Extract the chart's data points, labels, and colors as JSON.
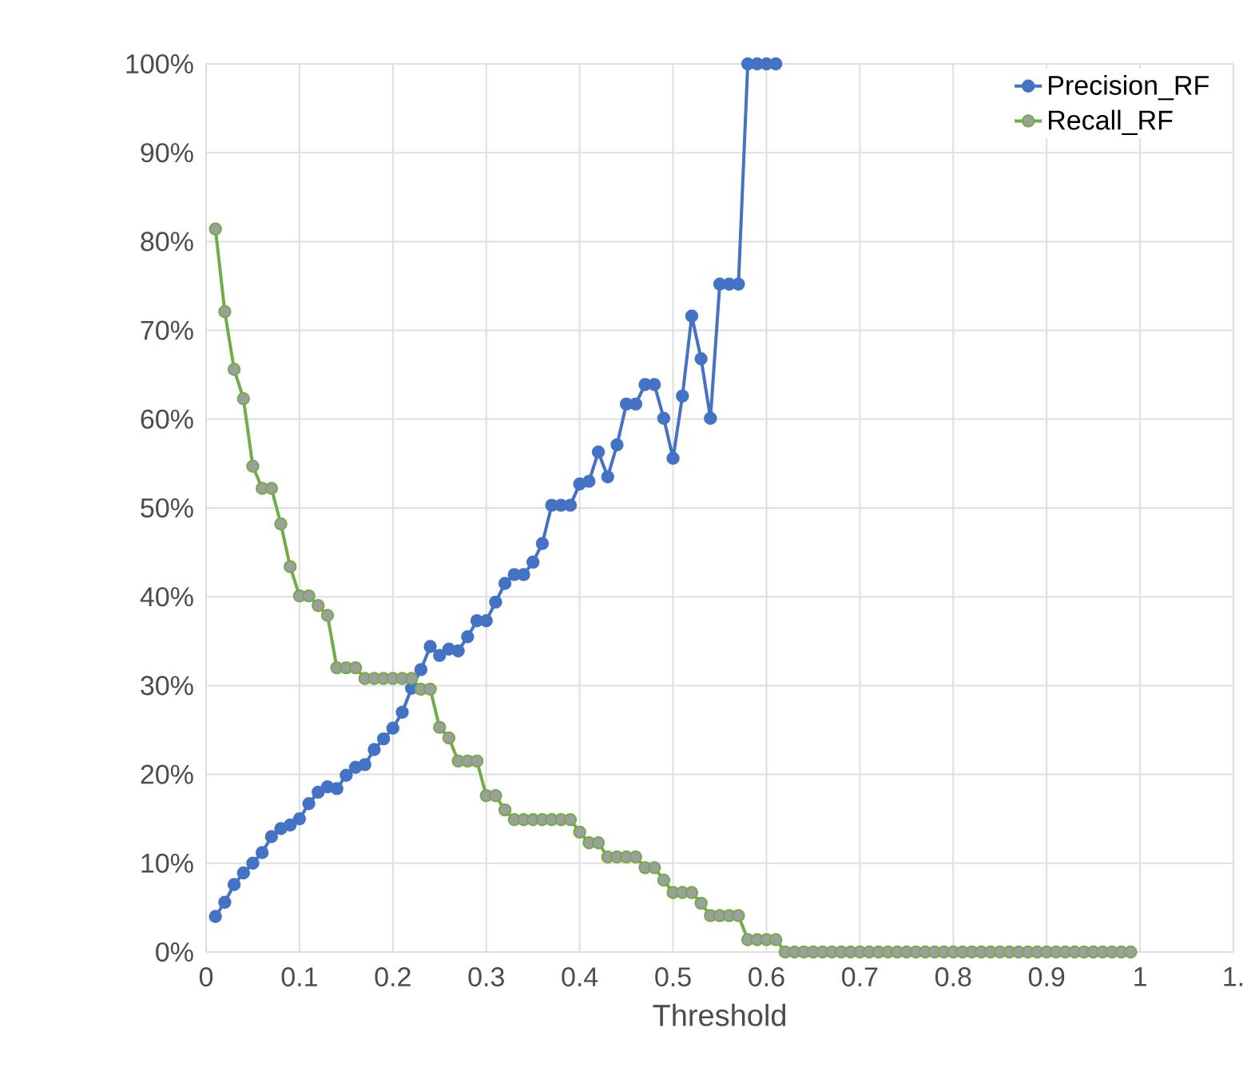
{
  "chart_data": {
    "type": "line",
    "xlabel": "Threshold",
    "xlim": [
      0,
      1.1
    ],
    "ylim": [
      0,
      100
    ],
    "xticks": [
      0,
      0.1,
      0.2,
      0.3,
      0.4,
      0.5,
      0.6,
      0.7,
      0.8,
      0.9,
      1,
      {
        "value": 1.1,
        "label": "1."
      }
    ],
    "yticks": [
      {
        "value": 0,
        "label": "0%"
      },
      {
        "value": 10,
        "label": "10%"
      },
      {
        "value": 20,
        "label": "20%"
      },
      {
        "value": 30,
        "label": "30%"
      },
      {
        "value": 40,
        "label": "40%"
      },
      {
        "value": 50,
        "label": "50%"
      },
      {
        "value": 60,
        "label": "60%"
      },
      {
        "value": 70,
        "label": "70%"
      },
      {
        "value": 80,
        "label": "80%"
      },
      {
        "value": 90,
        "label": "90%"
      },
      {
        "value": 100,
        "label": "100%"
      }
    ],
    "grid": true,
    "legend": "top right",
    "marker": "circle",
    "line_style": "solid",
    "series": [
      {
        "name": "Precision_RF",
        "color": "#4472c4",
        "x": [
          0.01,
          0.02,
          0.03,
          0.04,
          0.05,
          0.06,
          0.07,
          0.08,
          0.09,
          0.1,
          0.11,
          0.12,
          0.13,
          0.14,
          0.15,
          0.16,
          0.17,
          0.18,
          0.19,
          0.2,
          0.21,
          0.22,
          0.23,
          0.24,
          0.25,
          0.26,
          0.27,
          0.28,
          0.29,
          0.3,
          0.31,
          0.32,
          0.33,
          0.34,
          0.35,
          0.36,
          0.37,
          0.38,
          0.39,
          0.4,
          0.41,
          0.42,
          0.43,
          0.44,
          0.45,
          0.46,
          0.47,
          0.48,
          0.49,
          0.5,
          0.51,
          0.52,
          0.53,
          0.54,
          0.55,
          0.56,
          0.57,
          0.58,
          0.59,
          0.6,
          0.61
        ],
        "values": [
          4,
          5.6,
          7.6,
          8.9,
          10,
          11.2,
          13,
          13.9,
          14.3,
          15,
          16.7,
          18,
          18.6,
          18.4,
          19.9,
          20.8,
          21.1,
          22.8,
          24,
          25.2,
          27,
          29.7,
          31.8,
          34.4,
          33.4,
          34.1,
          33.9,
          35.5,
          37.3,
          37.3,
          39.4,
          41.5,
          42.5,
          42.5,
          43.9,
          46,
          50.3,
          50.3,
          50.3,
          52.7,
          53,
          56.3,
          53.5,
          57.1,
          61.7,
          61.7,
          63.9,
          63.9,
          60.1,
          55.6,
          62.6,
          71.6,
          66.8,
          60.1,
          75.2,
          75.2,
          75.2,
          100,
          100,
          100,
          100
        ]
      },
      {
        "name": "Recall_RF",
        "color": "#70ad47",
        "x": [
          0.01,
          0.02,
          0.03,
          0.04,
          0.05,
          0.06,
          0.07,
          0.08,
          0.09,
          0.1,
          0.11,
          0.12,
          0.13,
          0.14,
          0.15,
          0.16,
          0.17,
          0.18,
          0.19,
          0.2,
          0.21,
          0.22,
          0.23,
          0.24,
          0.25,
          0.26,
          0.27,
          0.28,
          0.29,
          0.3,
          0.31,
          0.32,
          0.33,
          0.34,
          0.35,
          0.36,
          0.37,
          0.38,
          0.39,
          0.4,
          0.41,
          0.42,
          0.43,
          0.44,
          0.45,
          0.46,
          0.47,
          0.48,
          0.49,
          0.5,
          0.51,
          0.52,
          0.53,
          0.54,
          0.55,
          0.56,
          0.57,
          0.58,
          0.59,
          0.6,
          0.61,
          0.62,
          0.63,
          0.64,
          0.65,
          0.66,
          0.67,
          0.68,
          0.69,
          0.7,
          0.71,
          0.72,
          0.73,
          0.74,
          0.75,
          0.76,
          0.77,
          0.78,
          0.79,
          0.8,
          0.81,
          0.82,
          0.83,
          0.84,
          0.85,
          0.86,
          0.87,
          0.88,
          0.89,
          0.9,
          0.91,
          0.92,
          0.93,
          0.94,
          0.95,
          0.96,
          0.97,
          0.98,
          0.99
        ],
        "values": [
          81.4,
          72.1,
          65.6,
          62.3,
          54.7,
          52.2,
          52.2,
          48.2,
          43.4,
          40.1,
          40.1,
          39,
          37.9,
          32,
          32,
          32,
          30.8,
          30.8,
          30.8,
          30.8,
          30.8,
          30.8,
          29.6,
          29.6,
          25.3,
          24.1,
          21.5,
          21.5,
          21.5,
          17.6,
          17.6,
          16,
          14.9,
          14.9,
          14.9,
          14.9,
          14.9,
          14.9,
          14.9,
          13.5,
          12.3,
          12.3,
          10.7,
          10.7,
          10.7,
          10.7,
          9.5,
          9.5,
          8.1,
          6.7,
          6.7,
          6.7,
          5.5,
          4.1,
          4.1,
          4.1,
          4.1,
          1.4,
          1.4,
          1.4,
          1.4,
          0,
          0,
          0,
          0,
          0,
          0,
          0,
          0,
          0,
          0,
          0,
          0,
          0,
          0,
          0,
          0,
          0,
          0,
          0,
          0,
          0,
          0,
          0,
          0,
          0,
          0,
          0,
          0,
          0,
          0,
          0,
          0,
          0,
          0,
          0,
          0,
          0,
          0
        ]
      }
    ]
  }
}
